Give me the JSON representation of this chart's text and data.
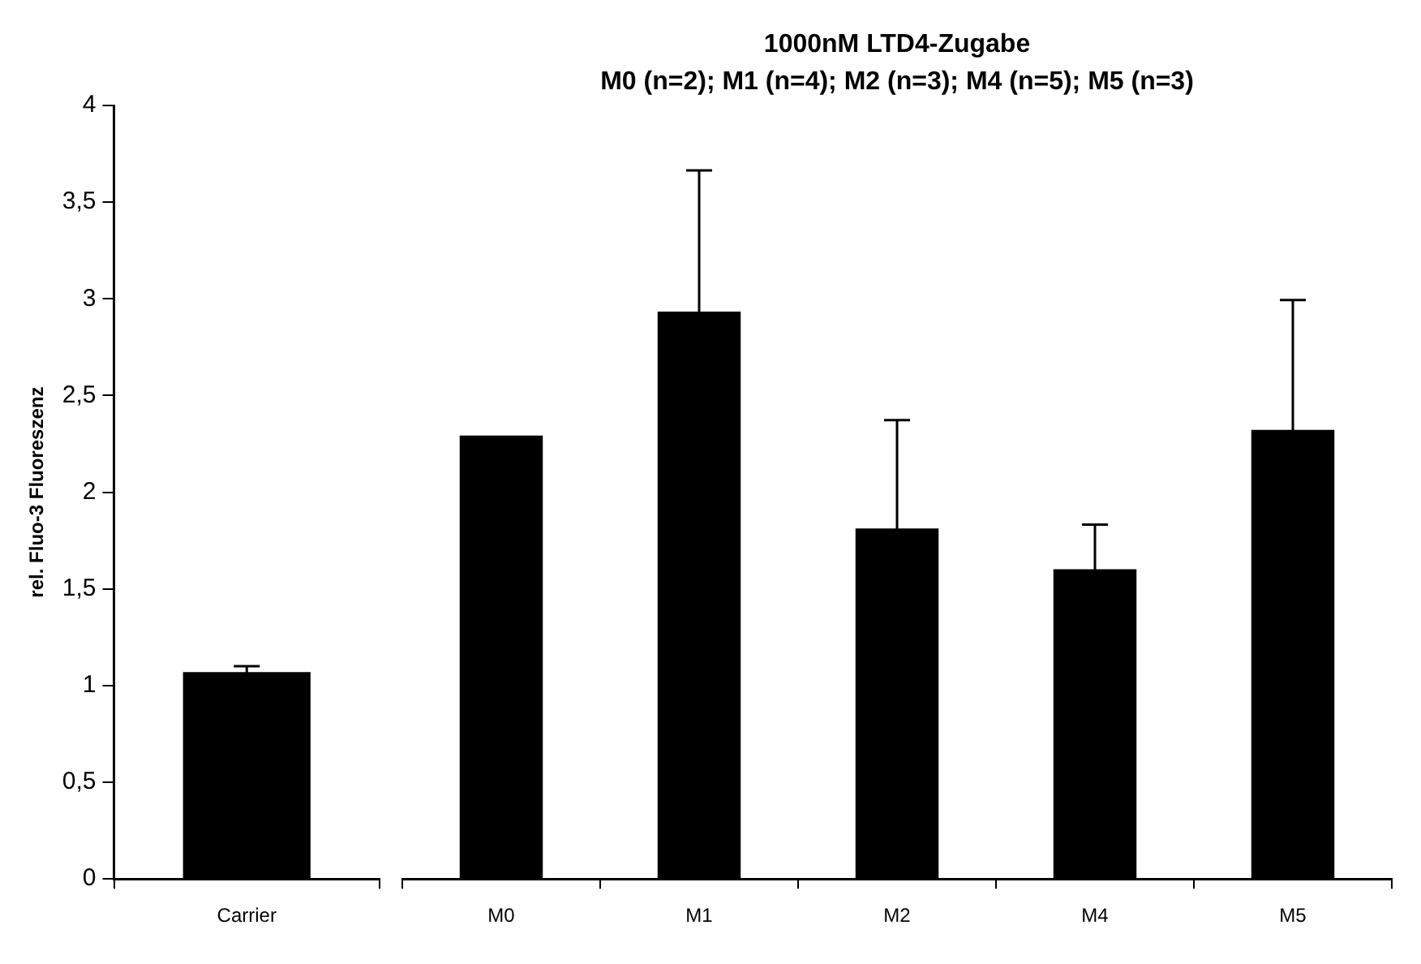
{
  "chart_data": [
    {
      "type": "bar",
      "ylabel": "rel. Fluo-3 Fluoreszenz",
      "categories": [
        "Carrier"
      ],
      "values": [
        1.07
      ],
      "errors": [
        0.03
      ],
      "color": "#000000",
      "ylim": [
        0,
        4
      ],
      "yticks": [
        0,
        {
          "value": 0.5,
          "label": "0,5"
        },
        1,
        {
          "value": 1.5,
          "label": "1,5"
        },
        2,
        {
          "value": 2.5,
          "label": "2,5"
        },
        3,
        {
          "value": 3.5,
          "label": "3,5"
        },
        4
      ],
      "grid": false,
      "legend": false
    },
    {
      "type": "bar",
      "title": "1000nM LTD4-Zugabe",
      "subtitle": "M0 (n=2); M1 (n=4); M2 (n=3); M4 (n=5); M5 (n=3)",
      "categories": [
        "M0",
        "M1",
        "M2",
        "M4",
        "M5"
      ],
      "values": [
        2.29,
        2.93,
        1.81,
        1.6,
        2.32
      ],
      "errors": [
        null,
        0.73,
        0.56,
        0.23,
        0.67
      ],
      "color": "#000000",
      "ylim": [
        0,
        4
      ],
      "tick_labels": "x",
      "grid": false,
      "legend": false
    }
  ]
}
